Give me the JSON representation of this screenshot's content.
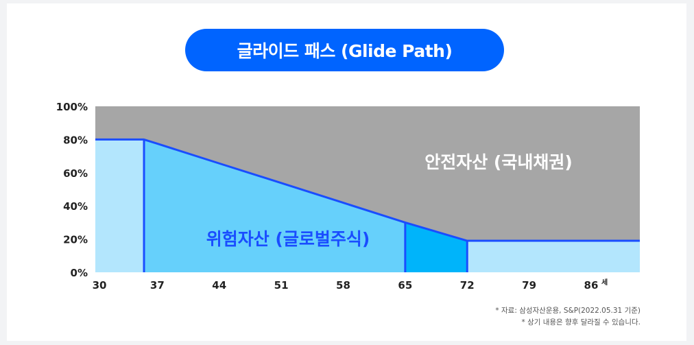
{
  "title_pill": "글라이드 패스 (Glide Path)",
  "notes": [
    "* 자료: 삼성자산운용, S&P(2022.05.31 기준)",
    "* 상기 내용은 향후 달라질 수 있습니다."
  ],
  "colors": {
    "pill": "#0064ff",
    "safe_area": "#a6a6a6",
    "risk_light": "#b3e6fd",
    "risk_mid": "#66d0fb",
    "risk_deep": "#00b4fa",
    "line": "#1a4dff",
    "risk_label": "#1a4dff",
    "safe_label": "#ffffff"
  },
  "chart_data": {
    "type": "area",
    "x": [
      30,
      35.5,
      37,
      44,
      51,
      58,
      65,
      72,
      79,
      86,
      91.5
    ],
    "series": [
      {
        "name": "위험자산 (글로벌주식)",
        "values": [
          80,
          80,
          77.5,
          65.6,
          53.8,
          41.9,
          30,
          19,
          19,
          19,
          19
        ]
      },
      {
        "name": "안전자산 (국내채권)",
        "values": [
          20,
          20,
          22.5,
          34.4,
          46.2,
          58.1,
          70,
          81,
          81,
          81,
          81
        ]
      }
    ],
    "xticks": [
      "30",
      "37",
      "44",
      "51",
      "58",
      "65",
      "72",
      "79",
      "86"
    ],
    "xtick_values": [
      30,
      37,
      44,
      51,
      58,
      65,
      72,
      79,
      86
    ],
    "yticks": [
      "0%",
      "20%",
      "40%",
      "60%",
      "80%",
      "100%"
    ],
    "ytick_values": [
      0,
      20,
      40,
      60,
      80,
      100
    ],
    "xlabel": "세",
    "ylabel": "",
    "xlim": [
      30,
      91.5
    ],
    "ylim": [
      0,
      100
    ],
    "phase_boundaries": [
      35.5,
      65,
      72
    ],
    "grid": false,
    "legend": "none"
  }
}
